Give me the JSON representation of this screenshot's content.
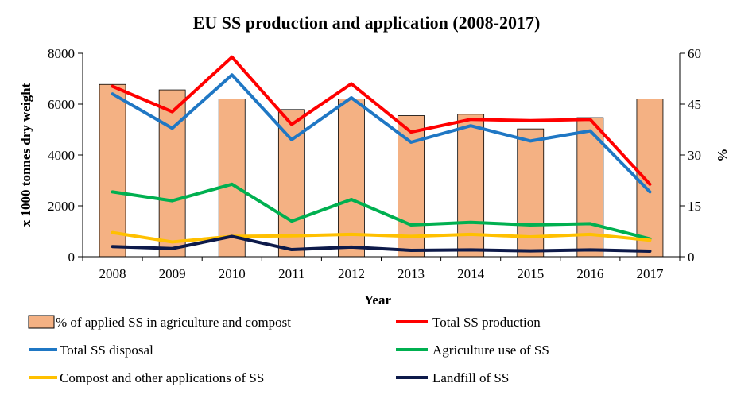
{
  "chart_data": {
    "type": "bar+line",
    "title": "EU SS production and application (2008-2017)",
    "xlabel": "Year",
    "ylabel_left": "x 1000 tonnes dry weight",
    "ylabel_right": "%",
    "ylim_left": [
      0,
      8000
    ],
    "ylim_right": [
      0,
      60
    ],
    "yticks_left": [
      "0",
      "2000",
      "4000",
      "6000",
      "8000"
    ],
    "yticks_right": [
      "0",
      "15",
      "30",
      "45",
      "60"
    ],
    "categories": [
      "2008",
      "2009",
      "2010",
      "2011",
      "2012",
      "2013",
      "2014",
      "2015",
      "2016",
      "2017"
    ],
    "bar_series": {
      "name": "% of applied SS in agriculture and compost",
      "axis": "right",
      "color": "#F4B183",
      "values": [
        50.8,
        49.2,
        46.5,
        43.4,
        46.5,
        41.6,
        42.0,
        37.7,
        41.0,
        46.5
      ]
    },
    "line_series": [
      {
        "name": "Total SS production",
        "color": "#FF0000",
        "values": [
          6700,
          5700,
          7850,
          5200,
          6800,
          4900,
          5400,
          5350,
          5400,
          2850
        ]
      },
      {
        "name": "Total SS disposal",
        "color": "#1F77C4",
        "values": [
          6400,
          5050,
          7150,
          4600,
          6250,
          4500,
          5150,
          4550,
          4950,
          2550
        ]
      },
      {
        "name": "Agriculture use of SS",
        "color": "#00B050",
        "values": [
          2550,
          2200,
          2850,
          1400,
          2250,
          1250,
          1350,
          1250,
          1300,
          700
        ]
      },
      {
        "name": "Compost and other applications of SS",
        "color": "#FFC000",
        "values": [
          950,
          580,
          800,
          820,
          880,
          800,
          880,
          780,
          880,
          650
        ]
      },
      {
        "name": "Landfill of SS",
        "color": "#0D1A4A",
        "values": [
          400,
          320,
          800,
          280,
          380,
          250,
          270,
          230,
          270,
          220
        ]
      }
    ]
  }
}
